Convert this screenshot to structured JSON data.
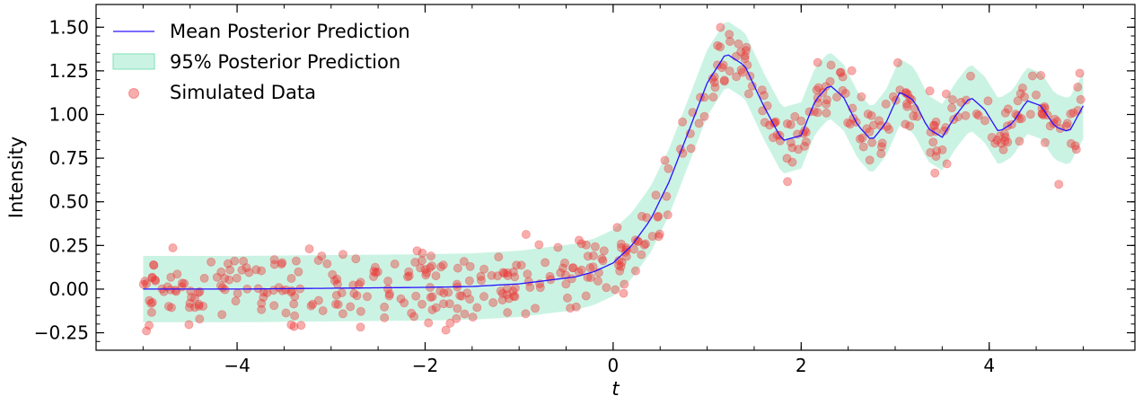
{
  "chart_data": {
    "type": "scatter",
    "xlabel": "t",
    "ylabel": "Intensity",
    "xlim": [
      -5.5,
      5.55
    ],
    "ylim": [
      -0.35,
      1.63
    ],
    "xticks": [
      -4,
      -2,
      0,
      2,
      4
    ],
    "xtick_labels": [
      "−4",
      "−2",
      "0",
      "2",
      "4"
    ],
    "yticks": [
      -0.25,
      0.0,
      0.25,
      0.5,
      0.75,
      1.0,
      1.25,
      1.5
    ],
    "ytick_labels": [
      "−0.25",
      "0.00",
      "0.25",
      "0.50",
      "0.75",
      "1.00",
      "1.25",
      "1.50"
    ],
    "x_range": [
      -5,
      5
    ],
    "mean_prediction": {
      "name": "Mean Posterior Prediction",
      "color": "#2a10ff",
      "x": [
        -5.0,
        -4.0,
        -3.0,
        -2.0,
        -1.5,
        -1.0,
        -0.7,
        -0.4,
        -0.2,
        0.0,
        0.2,
        0.4,
        0.6,
        0.8,
        1.0,
        1.2,
        1.4,
        1.6,
        1.8,
        2.0,
        2.15,
        2.3,
        2.45,
        2.6,
        2.75,
        2.9,
        3.05,
        3.2,
        3.35,
        3.5,
        3.65,
        3.8,
        3.95,
        4.1,
        4.25,
        4.4,
        4.55,
        4.7,
        4.85,
        5.0
      ],
      "y": [
        0.0,
        0.0,
        0.005,
        0.01,
        0.015,
        0.03,
        0.05,
        0.07,
        0.1,
        0.15,
        0.25,
        0.4,
        0.62,
        0.9,
        1.18,
        1.35,
        1.28,
        1.05,
        0.85,
        0.88,
        1.08,
        1.17,
        1.1,
        0.94,
        0.85,
        0.95,
        1.13,
        1.08,
        0.92,
        0.87,
        1.0,
        1.1,
        1.03,
        0.9,
        0.95,
        1.08,
        1.05,
        0.93,
        0.9,
        1.05
      ]
    },
    "credible_band": {
      "name": "95% Posterior Prediction",
      "color": "#7ee0b8",
      "half_width": 0.19
    },
    "simulated_data": {
      "name": "Simulated Data",
      "color": "#ee3333",
      "n_points": 500,
      "noise_sd": 0.1,
      "seed": 7
    },
    "legend_position": "upper-left",
    "grid": false
  }
}
